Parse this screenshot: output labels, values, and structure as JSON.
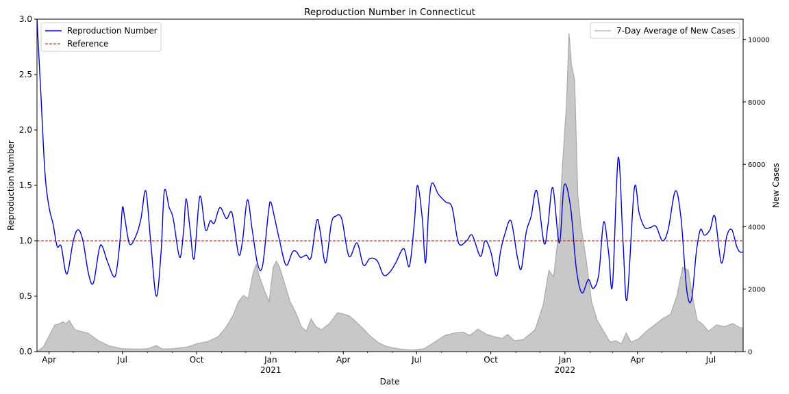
{
  "chart_data": {
    "type": "line",
    "title": "Reproduction Number in Connecticut",
    "xlabel": "Date",
    "ylabel": "Reproduction Number",
    "y2label": "New Cases",
    "x_range": [
      "2020-03-17",
      "2022-08-10"
    ],
    "ylim": [
      0,
      3.0
    ],
    "y2lim": [
      0,
      10650
    ],
    "y_ticks": [
      "0.0",
      "0.5",
      "1.0",
      "1.5",
      "2.0",
      "2.5",
      "3.0"
    ],
    "y2_ticks": [
      "0",
      "2000",
      "4000",
      "6000",
      "8000",
      "10000"
    ],
    "x_ticks": [
      {
        "date": "2020-04-01",
        "label": "Apr",
        "sub": ""
      },
      {
        "date": "2020-07-01",
        "label": "Jul",
        "sub": ""
      },
      {
        "date": "2020-10-01",
        "label": "Oct",
        "sub": ""
      },
      {
        "date": "2021-01-01",
        "label": "Jan",
        "sub": "2021"
      },
      {
        "date": "2021-04-01",
        "label": "Apr",
        "sub": ""
      },
      {
        "date": "2021-07-01",
        "label": "Jul",
        "sub": ""
      },
      {
        "date": "2021-10-01",
        "label": "Oct",
        "sub": ""
      },
      {
        "date": "2022-01-01",
        "label": "Jan",
        "sub": "2022"
      },
      {
        "date": "2022-04-01",
        "label": "Apr",
        "sub": ""
      },
      {
        "date": "2022-07-01",
        "label": "Jul",
        "sub": ""
      }
    ],
    "grid": false,
    "legend_left": {
      "placement": "upper-left",
      "entries": [
        {
          "label": "Reproduction Number",
          "color": "#0000dd",
          "style": "solid"
        },
        {
          "label": "Reference",
          "color": "#cc0000",
          "style": "dashed"
        }
      ]
    },
    "legend_right": {
      "placement": "upper-right",
      "entries": [
        {
          "label": "7-Day Average of New Cases",
          "color": "#c0c0c0",
          "style": "solid"
        }
      ]
    },
    "reference_line": {
      "y": 1.0,
      "color": "#cc0000"
    },
    "series": [
      {
        "name": "Reproduction Number",
        "axis": "left",
        "color": "#0000dd",
        "points": [
          [
            "2020-03-17",
            3.0
          ],
          [
            "2020-03-22",
            2.3
          ],
          [
            "2020-03-27",
            1.6
          ],
          [
            "2020-04-01",
            1.3
          ],
          [
            "2020-04-06",
            1.15
          ],
          [
            "2020-04-11",
            0.95
          ],
          [
            "2020-04-16",
            0.95
          ],
          [
            "2020-04-23",
            0.7
          ],
          [
            "2020-05-01",
            1.0
          ],
          [
            "2020-05-07",
            1.1
          ],
          [
            "2020-05-13",
            1.0
          ],
          [
            "2020-05-20",
            0.7
          ],
          [
            "2020-05-26",
            0.62
          ],
          [
            "2020-06-02",
            0.92
          ],
          [
            "2020-06-06",
            0.95
          ],
          [
            "2020-06-13",
            0.8
          ],
          [
            "2020-06-22",
            0.68
          ],
          [
            "2020-06-28",
            1.0
          ],
          [
            "2020-07-01",
            1.3
          ],
          [
            "2020-07-04",
            1.2
          ],
          [
            "2020-07-10",
            0.97
          ],
          [
            "2020-07-18",
            1.05
          ],
          [
            "2020-07-24",
            1.2
          ],
          [
            "2020-07-30",
            1.45
          ],
          [
            "2020-08-05",
            1.0
          ],
          [
            "2020-08-12",
            0.5
          ],
          [
            "2020-08-18",
            0.9
          ],
          [
            "2020-08-22",
            1.45
          ],
          [
            "2020-08-28",
            1.3
          ],
          [
            "2020-09-02",
            1.2
          ],
          [
            "2020-09-10",
            0.85
          ],
          [
            "2020-09-15",
            1.1
          ],
          [
            "2020-09-18",
            1.38
          ],
          [
            "2020-09-23",
            1.1
          ],
          [
            "2020-09-28",
            0.84
          ],
          [
            "2020-10-05",
            1.4
          ],
          [
            "2020-10-12",
            1.1
          ],
          [
            "2020-10-18",
            1.18
          ],
          [
            "2020-10-23",
            1.16
          ],
          [
            "2020-10-30",
            1.3
          ],
          [
            "2020-11-07",
            1.2
          ],
          [
            "2020-11-14",
            1.25
          ],
          [
            "2020-11-22",
            0.88
          ],
          [
            "2020-11-27",
            1.0
          ],
          [
            "2020-12-03",
            1.37
          ],
          [
            "2020-12-09",
            1.1
          ],
          [
            "2020-12-16",
            0.78
          ],
          [
            "2020-12-22",
            0.78
          ],
          [
            "2020-12-29",
            1.25
          ],
          [
            "2021-01-01",
            1.35
          ],
          [
            "2021-01-06",
            1.2
          ],
          [
            "2021-01-12",
            1.0
          ],
          [
            "2021-01-20",
            0.78
          ],
          [
            "2021-01-28",
            0.9
          ],
          [
            "2021-02-02",
            0.9
          ],
          [
            "2021-02-07",
            0.85
          ],
          [
            "2021-02-14",
            0.87
          ],
          [
            "2021-02-20",
            0.85
          ],
          [
            "2021-02-27",
            1.18
          ],
          [
            "2021-03-03",
            1.1
          ],
          [
            "2021-03-10",
            0.8
          ],
          [
            "2021-03-17",
            1.15
          ],
          [
            "2021-03-22",
            1.22
          ],
          [
            "2021-03-30",
            1.2
          ],
          [
            "2021-04-08",
            0.86
          ],
          [
            "2021-04-18",
            0.98
          ],
          [
            "2021-04-26",
            0.78
          ],
          [
            "2021-05-04",
            0.84
          ],
          [
            "2021-05-13",
            0.82
          ],
          [
            "2021-05-21",
            0.69
          ],
          [
            "2021-05-29",
            0.72
          ],
          [
            "2021-06-05",
            0.8
          ],
          [
            "2021-06-15",
            0.93
          ],
          [
            "2021-06-22",
            0.77
          ],
          [
            "2021-06-28",
            1.15
          ],
          [
            "2021-07-02",
            1.5
          ],
          [
            "2021-07-08",
            1.2
          ],
          [
            "2021-07-12",
            0.8
          ],
          [
            "2021-07-16",
            1.3
          ],
          [
            "2021-07-20",
            1.52
          ],
          [
            "2021-07-28",
            1.42
          ],
          [
            "2021-08-06",
            1.35
          ],
          [
            "2021-08-14",
            1.3
          ],
          [
            "2021-08-22",
            0.98
          ],
          [
            "2021-09-01",
            1.0
          ],
          [
            "2021-09-08",
            1.05
          ],
          [
            "2021-09-18",
            0.86
          ],
          [
            "2021-09-24",
            1.0
          ],
          [
            "2021-10-01",
            0.9
          ],
          [
            "2021-10-08",
            0.68
          ],
          [
            "2021-10-13",
            0.9
          ],
          [
            "2021-10-18",
            1.05
          ],
          [
            "2021-10-26",
            1.18
          ],
          [
            "2021-11-03",
            0.85
          ],
          [
            "2021-11-08",
            0.75
          ],
          [
            "2021-11-14",
            1.08
          ],
          [
            "2021-11-20",
            1.22
          ],
          [
            "2021-11-27",
            1.45
          ],
          [
            "2021-12-06",
            0.98
          ],
          [
            "2021-12-11",
            1.15
          ],
          [
            "2021-12-17",
            1.48
          ],
          [
            "2021-12-25",
            0.98
          ],
          [
            "2021-12-31",
            1.5
          ],
          [
            "2022-01-08",
            1.3
          ],
          [
            "2022-01-15",
            0.75
          ],
          [
            "2022-01-22",
            0.53
          ],
          [
            "2022-01-30",
            0.65
          ],
          [
            "2022-02-05",
            0.57
          ],
          [
            "2022-02-12",
            0.7
          ],
          [
            "2022-02-18",
            1.17
          ],
          [
            "2022-02-24",
            0.9
          ],
          [
            "2022-03-01",
            0.6
          ],
          [
            "2022-03-08",
            1.75
          ],
          [
            "2022-03-14",
            1.0
          ],
          [
            "2022-03-19",
            0.47
          ],
          [
            "2022-03-28",
            1.47
          ],
          [
            "2022-04-03",
            1.25
          ],
          [
            "2022-04-10",
            1.12
          ],
          [
            "2022-04-17",
            1.12
          ],
          [
            "2022-04-24",
            1.13
          ],
          [
            "2022-05-02",
            1.0
          ],
          [
            "2022-05-09",
            1.1
          ],
          [
            "2022-05-18",
            1.45
          ],
          [
            "2022-05-25",
            1.2
          ],
          [
            "2022-06-01",
            0.56
          ],
          [
            "2022-06-07",
            0.47
          ],
          [
            "2022-06-13",
            0.9
          ],
          [
            "2022-06-18",
            1.1
          ],
          [
            "2022-06-23",
            1.05
          ],
          [
            "2022-06-30",
            1.1
          ],
          [
            "2022-07-06",
            1.22
          ],
          [
            "2022-07-14",
            0.8
          ],
          [
            "2022-07-21",
            1.05
          ],
          [
            "2022-07-27",
            1.1
          ],
          [
            "2022-08-02",
            0.95
          ],
          [
            "2022-08-06",
            0.9
          ],
          [
            "2022-08-10",
            0.9
          ]
        ]
      },
      {
        "name": "7-Day Average of New Cases",
        "axis": "right",
        "color": "#a9a9a9",
        "fill": "#c8c8c8",
        "points": [
          [
            "2020-03-17",
            0
          ],
          [
            "2020-03-25",
            150
          ],
          [
            "2020-04-01",
            500
          ],
          [
            "2020-04-08",
            850
          ],
          [
            "2020-04-14",
            900
          ],
          [
            "2020-04-18",
            950
          ],
          [
            "2020-04-22",
            900
          ],
          [
            "2020-04-26",
            1000
          ],
          [
            "2020-05-03",
            700
          ],
          [
            "2020-05-10",
            650
          ],
          [
            "2020-05-20",
            580
          ],
          [
            "2020-06-01",
            350
          ],
          [
            "2020-06-15",
            180
          ],
          [
            "2020-07-01",
            90
          ],
          [
            "2020-07-20",
            80
          ],
          [
            "2020-08-01",
            90
          ],
          [
            "2020-08-12",
            190
          ],
          [
            "2020-08-20",
            80
          ],
          [
            "2020-09-01",
            90
          ],
          [
            "2020-09-20",
            150
          ],
          [
            "2020-10-01",
            250
          ],
          [
            "2020-10-15",
            320
          ],
          [
            "2020-10-28",
            480
          ],
          [
            "2020-11-07",
            800
          ],
          [
            "2020-11-15",
            1150
          ],
          [
            "2020-11-22",
            1600
          ],
          [
            "2020-11-28",
            1800
          ],
          [
            "2020-12-04",
            1700
          ],
          [
            "2020-12-10",
            2500
          ],
          [
            "2020-12-14",
            2800
          ],
          [
            "2020-12-18",
            2400
          ],
          [
            "2020-12-25",
            1900
          ],
          [
            "2020-12-30",
            1600
          ],
          [
            "2021-01-04",
            2700
          ],
          [
            "2021-01-08",
            2900
          ],
          [
            "2021-01-12",
            2700
          ],
          [
            "2021-01-18",
            2200
          ],
          [
            "2021-01-25",
            1600
          ],
          [
            "2021-02-01",
            1250
          ],
          [
            "2021-02-08",
            800
          ],
          [
            "2021-02-14",
            650
          ],
          [
            "2021-02-20",
            1050
          ],
          [
            "2021-02-26",
            800
          ],
          [
            "2021-03-05",
            700
          ],
          [
            "2021-03-15",
            900
          ],
          [
            "2021-03-25",
            1250
          ],
          [
            "2021-04-01",
            1200
          ],
          [
            "2021-04-08",
            1150
          ],
          [
            "2021-04-15",
            1000
          ],
          [
            "2021-04-25",
            750
          ],
          [
            "2021-05-05",
            480
          ],
          [
            "2021-05-15",
            280
          ],
          [
            "2021-05-25",
            160
          ],
          [
            "2021-06-10",
            80
          ],
          [
            "2021-06-25",
            50
          ],
          [
            "2021-07-10",
            90
          ],
          [
            "2021-07-22",
            280
          ],
          [
            "2021-08-05",
            520
          ],
          [
            "2021-08-18",
            600
          ],
          [
            "2021-08-28",
            620
          ],
          [
            "2021-09-05",
            520
          ],
          [
            "2021-09-15",
            720
          ],
          [
            "2021-09-25",
            560
          ],
          [
            "2021-10-05",
            480
          ],
          [
            "2021-10-15",
            420
          ],
          [
            "2021-10-22",
            550
          ],
          [
            "2021-10-30",
            350
          ],
          [
            "2021-11-10",
            380
          ],
          [
            "2021-11-25",
            700
          ],
          [
            "2021-12-05",
            1500
          ],
          [
            "2021-12-12",
            2600
          ],
          [
            "2021-12-18",
            2400
          ],
          [
            "2021-12-24",
            3800
          ],
          [
            "2021-12-29",
            6000
          ],
          [
            "2022-01-03",
            8000
          ],
          [
            "2022-01-06",
            10200
          ],
          [
            "2022-01-09",
            9200
          ],
          [
            "2022-01-13",
            8700
          ],
          [
            "2022-01-17",
            5000
          ],
          [
            "2022-01-21",
            4000
          ],
          [
            "2022-01-27",
            3000
          ],
          [
            "2022-02-03",
            1600
          ],
          [
            "2022-02-10",
            1000
          ],
          [
            "2022-02-18",
            650
          ],
          [
            "2022-02-26",
            300
          ],
          [
            "2022-03-05",
            350
          ],
          [
            "2022-03-12",
            250
          ],
          [
            "2022-03-18",
            600
          ],
          [
            "2022-03-24",
            300
          ],
          [
            "2022-04-02",
            400
          ],
          [
            "2022-04-12",
            650
          ],
          [
            "2022-04-22",
            850
          ],
          [
            "2022-05-02",
            1050
          ],
          [
            "2022-05-12",
            1200
          ],
          [
            "2022-05-20",
            1800
          ],
          [
            "2022-05-27",
            2700
          ],
          [
            "2022-06-03",
            2600
          ],
          [
            "2022-06-08",
            1800
          ],
          [
            "2022-06-14",
            1000
          ],
          [
            "2022-06-20",
            900
          ],
          [
            "2022-06-28",
            650
          ],
          [
            "2022-07-08",
            850
          ],
          [
            "2022-07-18",
            800
          ],
          [
            "2022-07-28",
            900
          ],
          [
            "2022-08-05",
            780
          ],
          [
            "2022-08-10",
            750
          ]
        ]
      }
    ]
  }
}
